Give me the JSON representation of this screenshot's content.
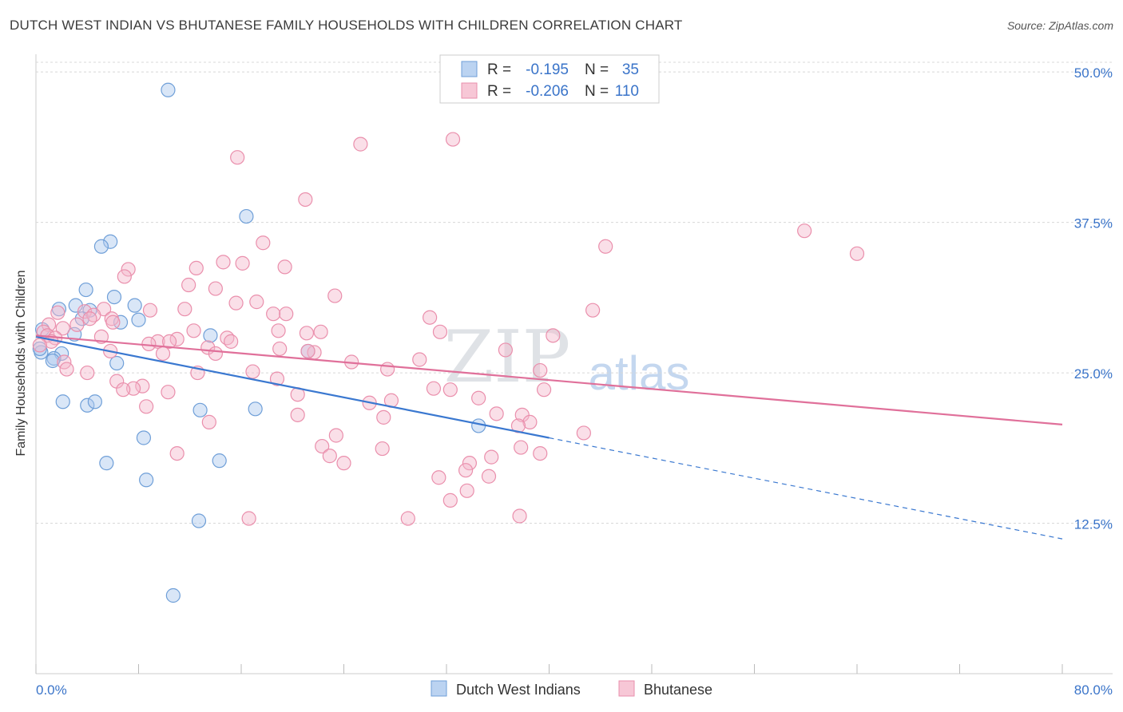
{
  "title": "DUTCH WEST INDIAN VS BHUTANESE FAMILY HOUSEHOLDS WITH CHILDREN CORRELATION CHART",
  "source": "Source: ZipAtlas.com",
  "watermark": {
    "zip": "ZIP",
    "atlas": "atlas"
  },
  "colors": {
    "blue_fill": "#aac8ee",
    "blue_stroke": "#6f9fd8",
    "blue_line": "#3a78d0",
    "pink_fill": "#f5b9cc",
    "pink_stroke": "#ea8fac",
    "pink_line": "#e0709a",
    "tick_text": "#3a74c9",
    "grid": "#d8d8d8"
  },
  "legend_top": {
    "rows": [
      {
        "r_label": "R =",
        "r_value": "-0.195",
        "n_label": "N =",
        "n_value": "35",
        "series": "blue"
      },
      {
        "r_label": "R =",
        "r_value": "-0.206",
        "n_label": "N =",
        "n_value": "110",
        "series": "pink"
      }
    ]
  },
  "chart_data": {
    "type": "scatter",
    "title": "DUTCH WEST INDIAN VS BHUTANESE FAMILY HOUSEHOLDS WITH CHILDREN CORRELATION CHART",
    "xlabel": "",
    "ylabel": "Family Households with Children",
    "xlim": [
      0,
      80
    ],
    "ylim": [
      0,
      52
    ],
    "x_tick_labels": [
      "0.0%",
      "80.0%"
    ],
    "y_ticks": [
      12.5,
      25.0,
      37.5,
      50.0
    ],
    "y_tick_labels": [
      "12.5%",
      "25.0%",
      "37.5%",
      "50.0%"
    ],
    "legend": [
      "Dutch West Indians",
      "Bhutanese"
    ],
    "series": [
      {
        "name": "Dutch West Indians",
        "color": "blue",
        "r": -0.195,
        "n": 35,
        "trend": {
          "x0": 0,
          "y0": 28.0,
          "x1": 40,
          "y1": 19.6,
          "dash_to_x": 80,
          "dash_to_y": 11.2
        },
        "points": [
          [
            10.3,
            48.5
          ],
          [
            16.4,
            38.0
          ],
          [
            5.8,
            35.9
          ],
          [
            5.1,
            35.5
          ],
          [
            3.9,
            31.9
          ],
          [
            6.1,
            31.3
          ],
          [
            3.1,
            30.6
          ],
          [
            7.7,
            30.6
          ],
          [
            4.2,
            30.2
          ],
          [
            1.8,
            30.3
          ],
          [
            3.6,
            29.5
          ],
          [
            8.0,
            29.4
          ],
          [
            6.6,
            29.2
          ],
          [
            0.5,
            28.6
          ],
          [
            3.0,
            28.2
          ],
          [
            13.6,
            28.1
          ],
          [
            0.4,
            26.7
          ],
          [
            2.0,
            26.6
          ],
          [
            1.4,
            26.2
          ],
          [
            1.3,
            26.0
          ],
          [
            21.2,
            26.8
          ],
          [
            6.3,
            25.8
          ],
          [
            2.1,
            22.6
          ],
          [
            4.0,
            22.3
          ],
          [
            4.6,
            22.6
          ],
          [
            12.8,
            21.9
          ],
          [
            17.1,
            22.0
          ],
          [
            8.4,
            19.6
          ],
          [
            34.5,
            20.6
          ],
          [
            5.5,
            17.5
          ],
          [
            14.3,
            17.7
          ],
          [
            8.6,
            16.1
          ],
          [
            12.7,
            12.7
          ],
          [
            10.7,
            6.5
          ],
          [
            0.3,
            27.0
          ]
        ]
      },
      {
        "name": "Bhutanese",
        "color": "pink",
        "r": -0.206,
        "n": 110,
        "trend": {
          "x0": 0,
          "y0": 28.1,
          "x1": 80,
          "y1": 20.7
        },
        "points": [
          [
            32.5,
            44.4
          ],
          [
            25.3,
            44.0
          ],
          [
            15.7,
            42.9
          ],
          [
            21.0,
            39.4
          ],
          [
            59.9,
            36.8
          ],
          [
            17.7,
            35.8
          ],
          [
            44.4,
            35.5
          ],
          [
            64.0,
            34.9
          ],
          [
            14.6,
            34.2
          ],
          [
            16.1,
            34.1
          ],
          [
            19.4,
            33.8
          ],
          [
            12.5,
            33.7
          ],
          [
            7.2,
            33.6
          ],
          [
            6.9,
            33.0
          ],
          [
            11.9,
            32.3
          ],
          [
            14.0,
            32.0
          ],
          [
            23.3,
            31.4
          ],
          [
            17.2,
            30.9
          ],
          [
            15.6,
            30.8
          ],
          [
            11.6,
            30.3
          ],
          [
            43.4,
            30.2
          ],
          [
            8.9,
            30.2
          ],
          [
            5.3,
            30.3
          ],
          [
            3.8,
            30.1
          ],
          [
            1.7,
            30.0
          ],
          [
            18.5,
            29.9
          ],
          [
            19.5,
            29.9
          ],
          [
            4.5,
            29.8
          ],
          [
            30.7,
            29.6
          ],
          [
            4.2,
            29.5
          ],
          [
            5.9,
            29.5
          ],
          [
            1.0,
            29.0
          ],
          [
            3.2,
            29.0
          ],
          [
            6.0,
            29.2
          ],
          [
            2.1,
            28.7
          ],
          [
            12.3,
            28.5
          ],
          [
            21.1,
            28.3
          ],
          [
            22.2,
            28.4
          ],
          [
            31.5,
            28.4
          ],
          [
            40.3,
            28.1
          ],
          [
            0.6,
            28.4
          ],
          [
            0.9,
            28.1
          ],
          [
            1.5,
            27.9
          ],
          [
            5.1,
            28.0
          ],
          [
            14.9,
            27.9
          ],
          [
            11.0,
            27.8
          ],
          [
            9.5,
            27.6
          ],
          [
            10.4,
            27.6
          ],
          [
            15.2,
            27.6
          ],
          [
            13.4,
            27.1
          ],
          [
            1.2,
            27.6
          ],
          [
            0.3,
            27.3
          ],
          [
            19.0,
            27.0
          ],
          [
            36.6,
            26.9
          ],
          [
            5.8,
            26.8
          ],
          [
            9.9,
            26.6
          ],
          [
            14.0,
            26.6
          ],
          [
            21.7,
            26.7
          ],
          [
            2.2,
            25.9
          ],
          [
            24.6,
            25.9
          ],
          [
            29.9,
            26.1
          ],
          [
            27.4,
            25.3
          ],
          [
            39.3,
            25.2
          ],
          [
            2.4,
            25.3
          ],
          [
            4.0,
            25.0
          ],
          [
            12.6,
            25.0
          ],
          [
            16.9,
            25.1
          ],
          [
            18.8,
            24.5
          ],
          [
            6.3,
            24.3
          ],
          [
            8.3,
            23.9
          ],
          [
            7.6,
            23.7
          ],
          [
            6.8,
            23.6
          ],
          [
            31.0,
            23.7
          ],
          [
            32.3,
            23.6
          ],
          [
            39.6,
            23.6
          ],
          [
            20.4,
            23.2
          ],
          [
            10.3,
            23.4
          ],
          [
            34.5,
            22.9
          ],
          [
            27.7,
            22.7
          ],
          [
            8.6,
            22.2
          ],
          [
            20.4,
            21.5
          ],
          [
            27.1,
            21.3
          ],
          [
            35.9,
            21.6
          ],
          [
            37.9,
            21.5
          ],
          [
            38.5,
            20.9
          ],
          [
            13.5,
            20.9
          ],
          [
            37.6,
            20.6
          ],
          [
            42.7,
            20.0
          ],
          [
            23.4,
            19.8
          ],
          [
            22.3,
            18.9
          ],
          [
            37.8,
            18.8
          ],
          [
            27.0,
            18.7
          ],
          [
            39.3,
            18.3
          ],
          [
            11.0,
            18.3
          ],
          [
            22.9,
            18.1
          ],
          [
            35.5,
            18.0
          ],
          [
            33.8,
            17.5
          ],
          [
            24.0,
            17.5
          ],
          [
            33.5,
            16.9
          ],
          [
            35.3,
            16.4
          ],
          [
            31.4,
            16.3
          ],
          [
            33.6,
            15.2
          ],
          [
            32.3,
            14.4
          ],
          [
            16.6,
            12.9
          ],
          [
            29.0,
            12.9
          ],
          [
            37.7,
            13.1
          ],
          [
            21.2,
            26.8
          ],
          [
            18.9,
            28.5
          ],
          [
            8.8,
            27.4
          ],
          [
            26.0,
            22.5
          ]
        ]
      }
    ]
  }
}
